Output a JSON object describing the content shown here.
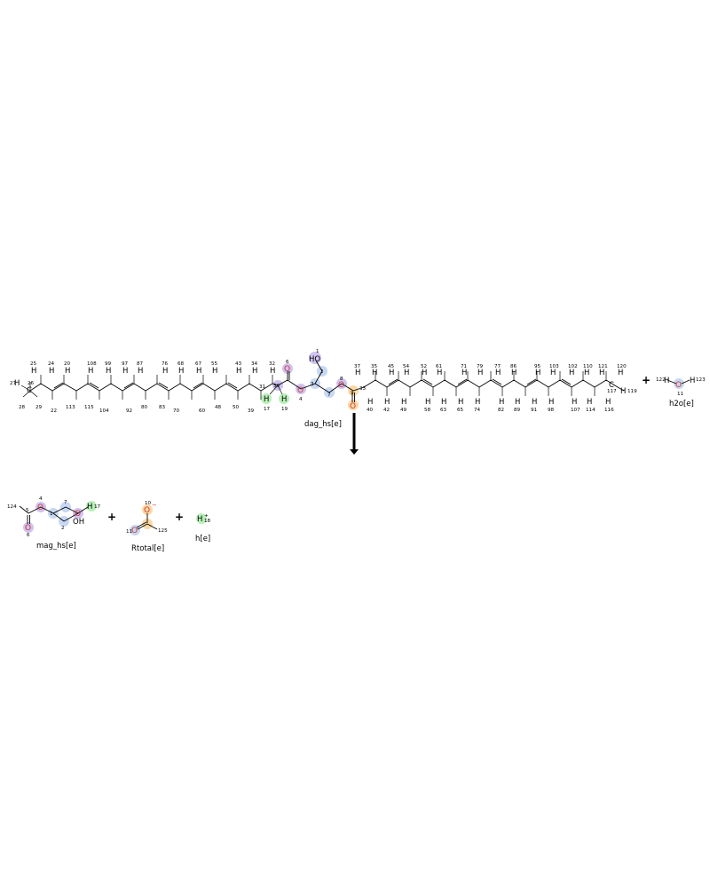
{
  "reaction": {
    "reactants": [
      {
        "id": "dag",
        "label": "dag_hs[e]"
      },
      {
        "id": "h2o",
        "label": "h2o[e]"
      }
    ],
    "products": [
      {
        "id": "mag",
        "label": "mag_hs[e]"
      },
      {
        "id": "rtotal",
        "label": "Rtotal[e]"
      },
      {
        "id": "h",
        "label": "h[e]"
      }
    ],
    "plus_signs": [
      "+",
      "+",
      "+"
    ],
    "arrow": "reaction-arrow"
  },
  "highlight_colors": {
    "purple": "#cfc3f1",
    "blue": "#c6d8f3",
    "green": "#b8f0b8",
    "orange": "#fbd9a6",
    "oxygen_text": "#d2362c"
  },
  "dag_atoms": {
    "O1": "HO",
    "n1": "1",
    "n2": "2",
    "n3": "3",
    "n4": "4",
    "n6": "6",
    "n7": "7",
    "n8": "8",
    "n9": "9",
    "n30": "30",
    "n31": "31",
    "n17": "17",
    "n19": "19",
    "n33": "33",
    "n26": "26",
    "n27": "27",
    "n28": "28",
    "n29": "29",
    "n22": "22",
    "n113": "113",
    "n115": "115",
    "n104": "104",
    "n92": "92",
    "n80": "80",
    "n83": "83",
    "n70": "70",
    "n60": "60",
    "n48": "48",
    "n50": "50",
    "n39": "39",
    "top_left": [
      "25",
      "24",
      "20",
      "108",
      "99",
      "97",
      "87",
      "76",
      "68",
      "67",
      "55",
      "43",
      "34",
      "32"
    ],
    "top_right": [
      "37",
      "35",
      "45",
      "54",
      "52",
      "61",
      "71",
      "79",
      "77",
      "86",
      "95",
      "103",
      "102",
      "110",
      "121",
      "120"
    ],
    "bottom_right": [
      "40",
      "42",
      "49",
      "58",
      "63",
      "65",
      "74",
      "82",
      "89",
      "91",
      "98",
      "107",
      "114",
      "116"
    ],
    "n117": "117",
    "n119": "119"
  },
  "h2o_atoms": {
    "n122": "122",
    "n123": "123",
    "n11": "11",
    "H": "H",
    "O": "O"
  },
  "mag_atoms": {
    "n124": "124",
    "n4": "4",
    "n5": "5",
    "n6": "6",
    "n7": "7",
    "n1": "1",
    "n2": "2",
    "n3": "3",
    "n17": "17",
    "OH": "OH",
    "O": "O",
    "H": "H"
  },
  "rtotal_atoms": {
    "n10": "10",
    "n11": "11",
    "n125": "125",
    "O": "O",
    "minus": "−"
  },
  "h_atoms": {
    "n18": "18",
    "H": "H",
    "plus": "+"
  }
}
